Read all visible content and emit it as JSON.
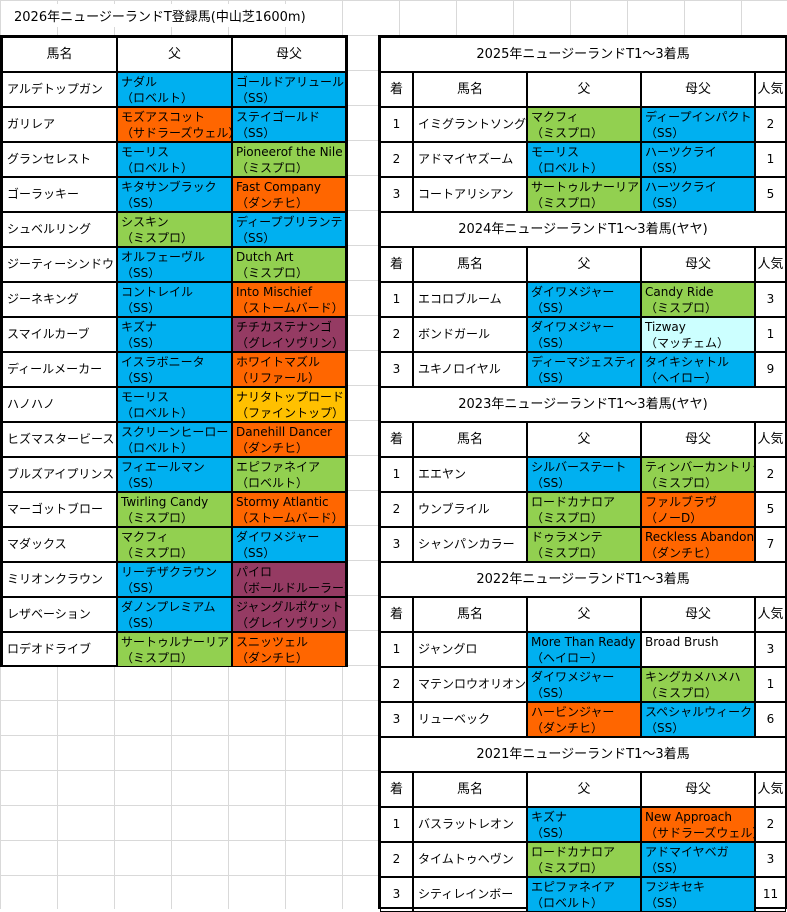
{
  "title": "2026年ニュージーランドT登録馬(中山芝1600m)",
  "colors": {
    "blue": "#00b0f0",
    "green": "#92d050",
    "orange": "#ff6600",
    "purple": "#953b63",
    "yellow": "#ffc000",
    "lightcyan": "#ccffff",
    "white": "#ffffff"
  },
  "left_table": {
    "headers": [
      "馬名",
      "父",
      "母父"
    ],
    "rows": [
      {
        "name": "アルデトップガン",
        "sire": [
          "ナダル",
          "（ロベルト）"
        ],
        "sire_color": "blue",
        "dam_sire": [
          "ゴールドアリュール",
          "（SS）"
        ],
        "dam_color": "blue"
      },
      {
        "name": "ガリレア",
        "sire": [
          "モズアスコット",
          "（サドラーズウェル）"
        ],
        "sire_color": "orange",
        "dam_sire": [
          "ステイゴールド",
          "（SS）"
        ],
        "dam_color": "blue"
      },
      {
        "name": "グランセレスト",
        "sire": [
          "モーリス",
          "（ロベルト）"
        ],
        "sire_color": "blue",
        "dam_sire": [
          "Pioneerof the Nile",
          "（ミスプロ）"
        ],
        "dam_color": "green"
      },
      {
        "name": "ゴーラッキー",
        "sire": [
          "キタサンブラック",
          "（SS）"
        ],
        "sire_color": "blue",
        "dam_sire": [
          "Fast Company",
          "（ダンチヒ）"
        ],
        "dam_color": "orange"
      },
      {
        "name": "シュベルリング",
        "sire": [
          "シスキン",
          "（ミスプロ）"
        ],
        "sire_color": "green",
        "dam_sire": [
          "ディープブリランテ",
          "（SS）"
        ],
        "dam_color": "blue"
      },
      {
        "name": "ジーティーシンドウ",
        "sire": [
          "オルフェーヴル",
          "（SS）"
        ],
        "sire_color": "blue",
        "dam_sire": [
          "Dutch Art",
          "（ミスプロ）"
        ],
        "dam_color": "green"
      },
      {
        "name": "ジーネキング",
        "sire": [
          "コントレイル",
          "（SS）"
        ],
        "sire_color": "blue",
        "dam_sire": [
          "Into Mischief",
          "（ストームバード）"
        ],
        "dam_color": "orange"
      },
      {
        "name": "スマイルカーブ",
        "sire": [
          "キズナ",
          "（SS）"
        ],
        "sire_color": "blue",
        "dam_sire": [
          "チチカステナンゴ",
          "（グレイソヴリン）"
        ],
        "dam_color": "purple"
      },
      {
        "name": "ディールメーカー",
        "sire": [
          "イスラボニータ",
          "（SS）"
        ],
        "sire_color": "blue",
        "dam_sire": [
          "ホワイトマズル",
          "（リファール）"
        ],
        "dam_color": "orange"
      },
      {
        "name": "ハノハノ",
        "sire": [
          "モーリス",
          "（ロベルト）"
        ],
        "sire_color": "blue",
        "dam_sire": [
          "ナリタトップロード",
          "（ファイントップ）"
        ],
        "dam_color": "yellow"
      },
      {
        "name": "ヒズマスタービース",
        "sire": [
          "スクリーンヒーロー",
          "（ロベルト）"
        ],
        "sire_color": "blue",
        "dam_sire": [
          "Danehill Dancer",
          "（ダンチヒ）"
        ],
        "dam_color": "orange"
      },
      {
        "name": "ブルズアイプリンス",
        "sire": [
          "フィエールマン",
          "（SS）"
        ],
        "sire_color": "blue",
        "dam_sire": [
          "エピファネイア",
          "（ロベルト）"
        ],
        "dam_color": "green"
      },
      {
        "name": "マーゴットブロー",
        "sire": [
          "Twirling Candy",
          "（ミスプロ）"
        ],
        "sire_color": "green",
        "dam_sire": [
          "Stormy Atlantic",
          "（ストームバード）"
        ],
        "dam_color": "orange"
      },
      {
        "name": "マダックス",
        "sire": [
          "マクフィ",
          "（ミスプロ）"
        ],
        "sire_color": "green",
        "dam_sire": [
          "ダイワメジャー",
          "（SS）"
        ],
        "dam_color": "blue"
      },
      {
        "name": "ミリオンクラウン",
        "sire": [
          "リーチザクラウン",
          "（SS）"
        ],
        "sire_color": "blue",
        "dam_sire": [
          "パイロ",
          "（ボールドルーラー）"
        ],
        "dam_color": "purple"
      },
      {
        "name": "レザベーション",
        "sire": [
          "ダノンプレミアム",
          "（SS）"
        ],
        "sire_color": "blue",
        "dam_sire": [
          "ジャングルポケット",
          "（グレイソヴリン）"
        ],
        "dam_color": "purple"
      },
      {
        "name": "ロデオドライブ",
        "sire": [
          "サートゥルナーリア",
          "（ミスプロ）"
        ],
        "sire_color": "green",
        "dam_sire": [
          "スニッツェル",
          "（ダンチヒ）"
        ],
        "dam_color": "orange"
      }
    ]
  },
  "right_headers": [
    "着",
    "馬名",
    "父",
    "母父",
    "人気"
  ],
  "right_sections": [
    {
      "title": "2025年ニュージーランドT1～3着馬",
      "rows": [
        {
          "place": "1",
          "name": "イミグラントソング",
          "sire": [
            "マクフィ",
            "（ミスプロ）"
          ],
          "sire_color": "green",
          "dam_sire": [
            "ディープインパクト",
            "（SS）"
          ],
          "dam_color": "blue",
          "pop": "2"
        },
        {
          "place": "2",
          "name": "アドマイヤズーム",
          "sire": [
            "モーリス",
            "（ロベルト）"
          ],
          "sire_color": "blue",
          "dam_sire": [
            "ハーツクライ",
            "（SS）"
          ],
          "dam_color": "blue",
          "pop": "1"
        },
        {
          "place": "3",
          "name": "コートアリシアン",
          "sire": [
            "サートゥルナーリア",
            "（ミスプロ）"
          ],
          "sire_color": "green",
          "dam_sire": [
            "ハーツクライ",
            "（SS）"
          ],
          "dam_color": "blue",
          "pop": "5"
        }
      ]
    },
    {
      "title": "2024年ニュージーランドT1～3着馬(ヤヤ)",
      "rows": [
        {
          "place": "1",
          "name": "エコロブルーム",
          "sire": [
            "ダイワメジャー",
            "（SS）"
          ],
          "sire_color": "blue",
          "dam_sire": [
            "Candy Ride",
            "（ミスプロ）"
          ],
          "dam_color": "green",
          "pop": "3"
        },
        {
          "place": "2",
          "name": "ボンドガール",
          "sire": [
            "ダイワメジャー",
            "（SS）"
          ],
          "sire_color": "blue",
          "dam_sire": [
            "Tizway",
            "（マッチェム）"
          ],
          "dam_color": "lightcyan",
          "pop": "1"
        },
        {
          "place": "3",
          "name": "ユキノロイヤル",
          "sire": [
            "ディーマジェスティ",
            "（SS）"
          ],
          "sire_color": "blue",
          "dam_sire": [
            "タイキシャトル",
            "（ヘイロー）"
          ],
          "dam_color": "blue",
          "pop": "9"
        }
      ]
    },
    {
      "title": "2023年ニュージーランドT1～3着馬(ヤヤ)",
      "rows": [
        {
          "place": "1",
          "name": "エエヤン",
          "sire": [
            "シルバーステート",
            "（SS）"
          ],
          "sire_color": "blue",
          "dam_sire": [
            "ティンバーカントリー",
            "（ミスプロ）"
          ],
          "dam_color": "green",
          "pop": "2"
        },
        {
          "place": "2",
          "name": "ウンブライル",
          "sire": [
            "ロードカナロア",
            "（ミスプロ）"
          ],
          "sire_color": "green",
          "dam_sire": [
            "ファルブラヴ",
            "（ノーD）"
          ],
          "dam_color": "orange",
          "pop": "5"
        },
        {
          "place": "3",
          "name": "シャンパンカラー",
          "sire": [
            "ドゥラメンテ",
            "（ミスプロ）"
          ],
          "sire_color": "green",
          "dam_sire": [
            "Reckless Abandon",
            "（ダンチヒ）"
          ],
          "dam_color": "orange",
          "pop": "7"
        }
      ]
    },
    {
      "title": "2022年ニュージーランドT1～3着馬",
      "rows": [
        {
          "place": "1",
          "name": "ジャングロ",
          "sire": [
            "More Than Ready",
            "（ヘイロー）"
          ],
          "sire_color": "blue",
          "dam_sire": [
            "Broad Brush",
            ""
          ],
          "dam_color": "white",
          "pop": "3"
        },
        {
          "place": "2",
          "name": "マテンロウオリオン",
          "sire": [
            "ダイワメジャー",
            "（SS）"
          ],
          "sire_color": "blue",
          "dam_sire": [
            "キングカメハメハ",
            "（ミスプロ）"
          ],
          "dam_color": "green",
          "pop": "1"
        },
        {
          "place": "3",
          "name": "リューベック",
          "sire": [
            "ハービンジャー",
            "（ダンチヒ）"
          ],
          "sire_color": "orange",
          "dam_sire": [
            "スペシャルウィーク",
            "（SS）"
          ],
          "dam_color": "blue",
          "pop": "6"
        }
      ]
    },
    {
      "title": "2021年ニュージーランドT1～3着馬",
      "rows": [
        {
          "place": "1",
          "name": "バスラットレオン",
          "sire": [
            "キズナ",
            "（SS）"
          ],
          "sire_color": "blue",
          "dam_sire": [
            "New Approach",
            "（サドラーズウェル）"
          ],
          "dam_color": "orange",
          "pop": "2"
        },
        {
          "place": "2",
          "name": "タイムトゥヘヴン",
          "sire": [
            "ロードカナロア",
            "（ミスプロ）"
          ],
          "sire_color": "green",
          "dam_sire": [
            "アドマイヤベガ",
            "（SS）"
          ],
          "dam_color": "blue",
          "pop": "3"
        },
        {
          "place": "3",
          "name": "シティレインボー",
          "sire": [
            "エピファネイア",
            "（ロベルト）"
          ],
          "sire_color": "blue",
          "dam_sire": [
            "フジキセキ",
            "（SS）"
          ],
          "dam_color": "blue",
          "pop": "11"
        }
      ]
    }
  ]
}
